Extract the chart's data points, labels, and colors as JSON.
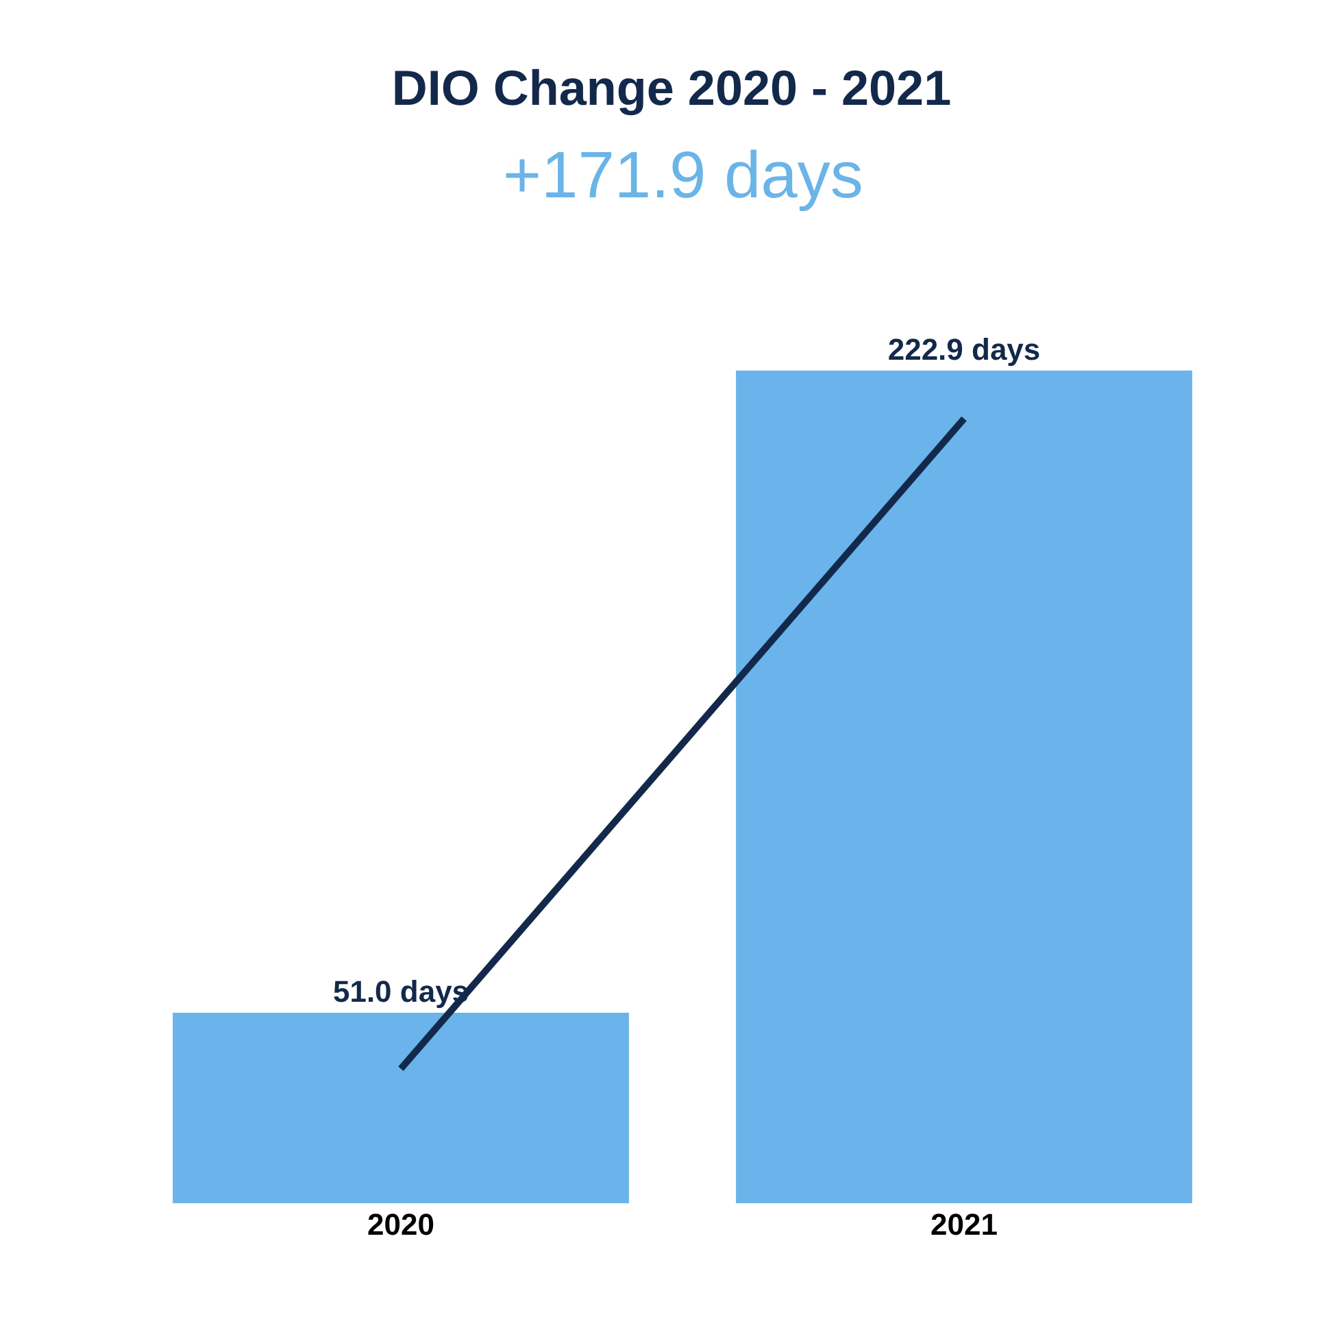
{
  "chart_data": {
    "type": "bar",
    "title": "DIO Change 2020 - 2021",
    "subtitle": "+171.9 days",
    "categories": [
      "2020",
      "2021"
    ],
    "series": [
      {
        "color": "#6ab4eb",
        "values": [
          51.0,
          222.9
        ],
        "value_labels": [
          "51.0 days",
          "222.9 days"
        ]
      },
      {
        "type": "line",
        "color": "#13294b",
        "values": [
          36,
          210
        ]
      }
    ],
    "tick_labels": "x"
  }
}
